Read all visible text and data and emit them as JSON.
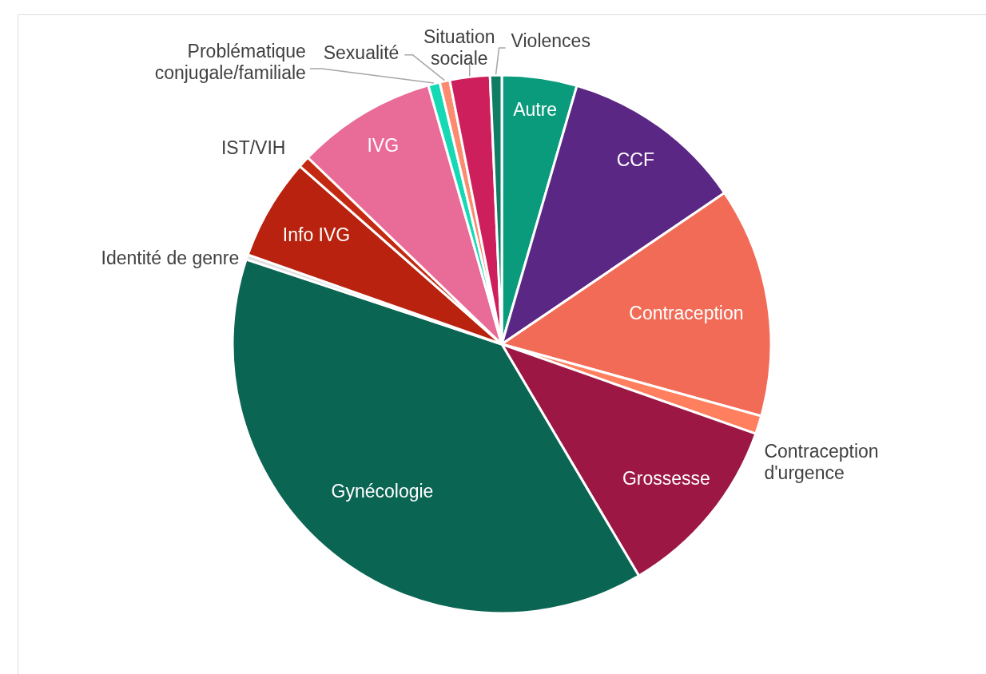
{
  "chart_data": {
    "type": "pie",
    "categories": [
      "Autre",
      "CCF",
      "Contraception",
      "Contraception d'urgence",
      "Grossesse",
      "Gynécologie",
      "Identité de genre",
      "Info IVG",
      "IST/VIH",
      "IVG",
      "Problématique conjugale/familiale",
      "Sexualité",
      "Situation sociale",
      "Violences"
    ],
    "values": [
      4.5,
      11.0,
      13.8,
      1.1,
      11.1,
      38.6,
      0.3,
      6.1,
      0.7,
      8.4,
      0.7,
      0.6,
      2.4,
      0.7
    ],
    "colors": [
      "#0a9b7d",
      "#5b2785",
      "#f26b57",
      "#ff7f5e",
      "#9c1744",
      "#0b6553",
      "#e0e0e0",
      "#b8220e",
      "#c42a12",
      "#e96b97",
      "#14d9b4",
      "#fb8c70",
      "#cd1f5c",
      "#0f7d64"
    ]
  }
}
